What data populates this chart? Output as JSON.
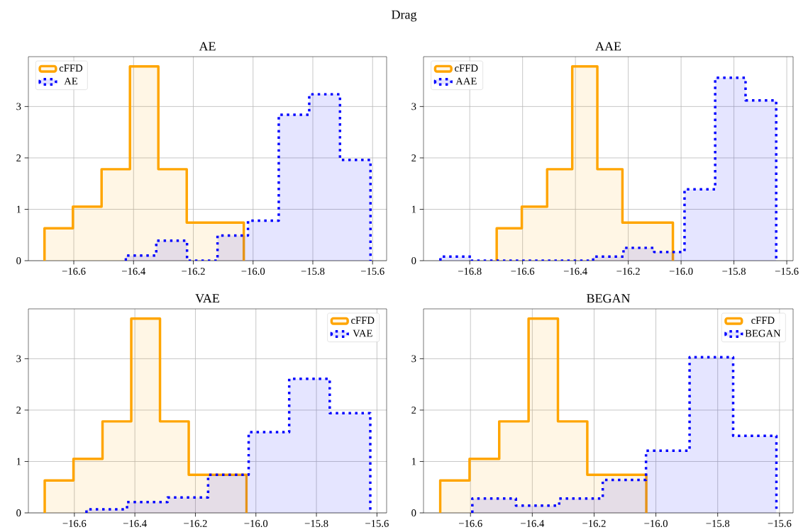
{
  "chart_data": [
    {
      "type": "histogram",
      "title": "AE",
      "annotations": [
        "Drag"
      ],
      "bins": [
        -16.698,
        -16.603,
        -16.507,
        -16.412,
        -16.317,
        -16.222,
        -16.126,
        -16.031
      ],
      "xlim": [
        -16.752,
        -15.553
      ],
      "ylim": [
        0,
        3.97
      ],
      "xticks": [
        {
          "value": -16.6,
          "label": "−16.6"
        },
        {
          "value": -16.4,
          "label": "−16.4"
        },
        {
          "value": -16.2,
          "label": "−16.2"
        },
        {
          "value": -16.0,
          "label": "−16.0"
        },
        {
          "value": -15.8,
          "label": "−15.8"
        },
        {
          "value": -15.6,
          "label": "−15.6"
        }
      ],
      "yticks": [
        0,
        1,
        2,
        3
      ],
      "grid": true,
      "legend": "top left",
      "series": [
        {
          "name": "cFFD",
          "color": "#ffa500",
          "line_style": "solid",
          "values": [
            0.63,
            1.05,
            1.78,
            3.78,
            1.78,
            0.74,
            0.74
          ]
        },
        {
          "name": "AE",
          "type": "histogram",
          "color": "#0000ff",
          "line_style": "dotted",
          "bins": [
            -16.426,
            -16.324,
            -16.221,
            -16.119,
            -16.017,
            -15.914,
            -15.812,
            -15.709,
            -15.607
          ],
          "values": [
            0.1,
            0.39,
            0,
            0.49,
            0.78,
            2.84,
            3.24,
            1.96
          ]
        }
      ]
    },
    {
      "type": "histogram",
      "title": "AAE",
      "bins": [
        -16.698,
        -16.603,
        -16.507,
        -16.412,
        -16.317,
        -16.222,
        -16.126,
        -16.031
      ],
      "xlim": [
        -16.975,
        -15.576
      ],
      "ylim": [
        0,
        3.97
      ],
      "xticks": [
        {
          "value": -16.8,
          "label": "−16.8"
        },
        {
          "value": -16.6,
          "label": "−16.6"
        },
        {
          "value": -16.4,
          "label": "−16.4"
        },
        {
          "value": -16.2,
          "label": "−16.2"
        },
        {
          "value": -16.0,
          "label": "−16.0"
        },
        {
          "value": -15.8,
          "label": "−15.8"
        },
        {
          "value": -15.6,
          "label": "−15.6"
        }
      ],
      "yticks": [
        0,
        1,
        2,
        3
      ],
      "grid": true,
      "legend": "top left",
      "series": [
        {
          "name": "cFFD",
          "color": "#ffa500",
          "line_style": "solid",
          "values": [
            0.63,
            1.05,
            1.78,
            3.78,
            1.78,
            0.74,
            0.74
          ]
        },
        {
          "name": "AAE",
          "type": "histogram",
          "color": "#0000ff",
          "line_style": "dotted",
          "bins": [
            -16.911,
            -16.795,
            -16.68,
            -16.564,
            -16.449,
            -16.333,
            -16.218,
            -16.102,
            -15.987,
            -15.871,
            -15.756,
            -15.64
          ],
          "values": [
            0.08,
            0,
            0,
            0,
            0,
            0.08,
            0.25,
            0.17,
            1.39,
            3.56,
            3.12
          ]
        }
      ]
    },
    {
      "type": "histogram",
      "title": "VAE",
      "bins": [
        -16.698,
        -16.603,
        -16.507,
        -16.412,
        -16.317,
        -16.222,
        -16.126,
        -16.031
      ],
      "xlim": [
        -16.752,
        -15.568
      ],
      "ylim": [
        0,
        3.97
      ],
      "xticks": [
        {
          "value": -16.6,
          "label": "−16.6"
        },
        {
          "value": -16.4,
          "label": "−16.4"
        },
        {
          "value": -16.2,
          "label": "−16.2"
        },
        {
          "value": -16.0,
          "label": "−16.0"
        },
        {
          "value": -15.8,
          "label": "−15.8"
        },
        {
          "value": -15.6,
          "label": "−15.6"
        }
      ],
      "yticks": [
        0,
        1,
        2,
        3
      ],
      "grid": true,
      "legend": "top right",
      "series": [
        {
          "name": "cFFD",
          "color": "#ffa500",
          "line_style": "solid",
          "values": [
            0.63,
            1.05,
            1.78,
            3.78,
            1.78,
            0.74,
            0.74
          ]
        },
        {
          "name": "VAE",
          "type": "histogram",
          "color": "#0000ff",
          "line_style": "dotted",
          "bins": [
            -16.56,
            -16.426,
            -16.292,
            -16.158,
            -16.024,
            -15.89,
            -15.756,
            -15.622
          ],
          "values": [
            0.07,
            0.21,
            0.3,
            0.74,
            1.57,
            2.61,
            1.94
          ]
        }
      ]
    },
    {
      "type": "histogram",
      "title": "BEGAN",
      "bins": [
        -16.698,
        -16.603,
        -16.507,
        -16.412,
        -16.317,
        -16.222,
        -16.126,
        -16.031
      ],
      "xlim": [
        -16.752,
        -15.556
      ],
      "ylim": [
        0,
        3.97
      ],
      "xticks": [
        {
          "value": -16.6,
          "label": "−16.6"
        },
        {
          "value": -16.4,
          "label": "−16.4"
        },
        {
          "value": -16.2,
          "label": "−16.2"
        },
        {
          "value": -16.0,
          "label": "−16.0"
        },
        {
          "value": -15.8,
          "label": "−15.8"
        },
        {
          "value": -15.6,
          "label": "−15.6"
        }
      ],
      "yticks": [
        0,
        1,
        2,
        3
      ],
      "grid": true,
      "legend": "top right",
      "series": [
        {
          "name": "cFFD",
          "color": "#ffa500",
          "line_style": "solid",
          "values": [
            0.63,
            1.05,
            1.78,
            3.78,
            1.78,
            0.74,
            0.74
          ]
        },
        {
          "name": "BEGAN",
          "type": "histogram",
          "color": "#0000ff",
          "line_style": "dotted",
          "bins": [
            -16.594,
            -16.453,
            -16.313,
            -16.172,
            -16.032,
            -15.891,
            -15.75,
            -15.61
          ],
          "values": [
            0.28,
            0.14,
            0.28,
            0.64,
            1.21,
            3.03,
            1.5
          ]
        }
      ]
    }
  ]
}
